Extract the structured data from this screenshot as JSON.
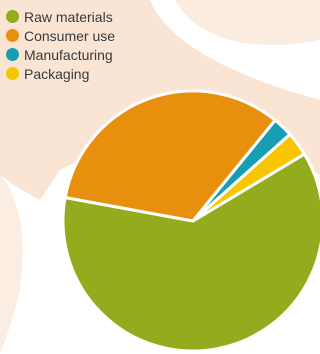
{
  "colors": {
    "raw_materials": "#93ab1c",
    "consumer_use": "#e8900e",
    "manufacturing": "#169fb3",
    "packaging": "#f7c600",
    "background_blob": "#f8dcc6"
  },
  "chart_data": {
    "type": "pie",
    "title": "",
    "categories": [
      "Raw materials",
      "Consumer use",
      "Manufacturing",
      "Packaging"
    ],
    "values": [
      61.5,
      33.0,
      2.5,
      3.0
    ],
    "unit": "%",
    "legend_position": "top-left",
    "legend": [
      {
        "label": "Raw materials",
        "color": "#93ab1c"
      },
      {
        "label": "Consumer use",
        "color": "#e8900e"
      },
      {
        "label": "Manufacturing",
        "color": "#169fb3"
      },
      {
        "label": "Packaging",
        "color": "#f7c600"
      }
    ]
  }
}
